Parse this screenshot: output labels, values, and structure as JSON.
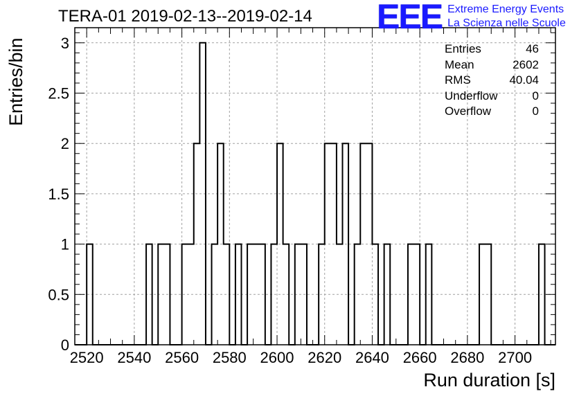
{
  "chart_data": {
    "type": "histogram",
    "title": "TERA-01 2019-02-13--2019-02-14",
    "xlabel": "Run duration [s]",
    "ylabel": "Entries/bin",
    "xlim": [
      2515,
      2717
    ],
    "ylim": [
      0,
      3.15
    ],
    "bin_width": 2.5,
    "xticks": [
      2520,
      2540,
      2560,
      2580,
      2600,
      2620,
      2640,
      2660,
      2680,
      2700
    ],
    "xtick_labels": [
      "2520",
      "2540",
      "2560",
      "2580",
      "2600",
      "2620",
      "2640",
      "2660",
      "2680",
      "2700"
    ],
    "yticks": [
      0,
      0.5,
      1,
      1.5,
      2,
      2.5,
      3
    ],
    "ytick_labels": [
      "0",
      "0.5",
      "1",
      "1.5",
      "2",
      "2.5",
      "3"
    ],
    "grid": true,
    "bins": [
      {
        "x": 2520,
        "y": 1
      },
      {
        "x": 2545,
        "y": 1
      },
      {
        "x": 2550,
        "y": 1
      },
      {
        "x": 2552.5,
        "y": 1
      },
      {
        "x": 2560,
        "y": 1
      },
      {
        "x": 2562.5,
        "y": 1
      },
      {
        "x": 2565,
        "y": 2
      },
      {
        "x": 2567.5,
        "y": 3
      },
      {
        "x": 2570,
        "y": 0
      },
      {
        "x": 2572.5,
        "y": 1
      },
      {
        "x": 2575,
        "y": 2
      },
      {
        "x": 2577.5,
        "y": 1
      },
      {
        "x": 2582.5,
        "y": 1
      },
      {
        "x": 2587.5,
        "y": 1
      },
      {
        "x": 2590,
        "y": 1
      },
      {
        "x": 2592.5,
        "y": 1
      },
      {
        "x": 2597.5,
        "y": 1
      },
      {
        "x": 2600,
        "y": 2
      },
      {
        "x": 2602.5,
        "y": 1
      },
      {
        "x": 2607.5,
        "y": 1
      },
      {
        "x": 2610,
        "y": 1
      },
      {
        "x": 2617.5,
        "y": 1
      },
      {
        "x": 2620,
        "y": 2
      },
      {
        "x": 2622.5,
        "y": 2
      },
      {
        "x": 2625,
        "y": 1
      },
      {
        "x": 2627.5,
        "y": 2
      },
      {
        "x": 2632.5,
        "y": 1
      },
      {
        "x": 2635,
        "y": 2
      },
      {
        "x": 2637.5,
        "y": 2
      },
      {
        "x": 2640,
        "y": 1
      },
      {
        "x": 2645,
        "y": 1
      },
      {
        "x": 2655,
        "y": 1
      },
      {
        "x": 2657.5,
        "y": 1
      },
      {
        "x": 2662.5,
        "y": 1
      },
      {
        "x": 2685,
        "y": 1
      },
      {
        "x": 2687.5,
        "y": 1
      },
      {
        "x": 2710,
        "y": 1
      }
    ]
  },
  "stats": [
    {
      "label": "Entries",
      "value": "46"
    },
    {
      "label": "Mean",
      "value": "2602"
    },
    {
      "label": "RMS",
      "value": "40.04"
    },
    {
      "label": "Underflow",
      "value": "0"
    },
    {
      "label": "Overflow",
      "value": "0"
    }
  ],
  "logo": {
    "mark": "EEE",
    "line1": "Extreme Energy Events",
    "line2": "La Scienza nelle Scuole",
    "color": "#1a1aff"
  }
}
